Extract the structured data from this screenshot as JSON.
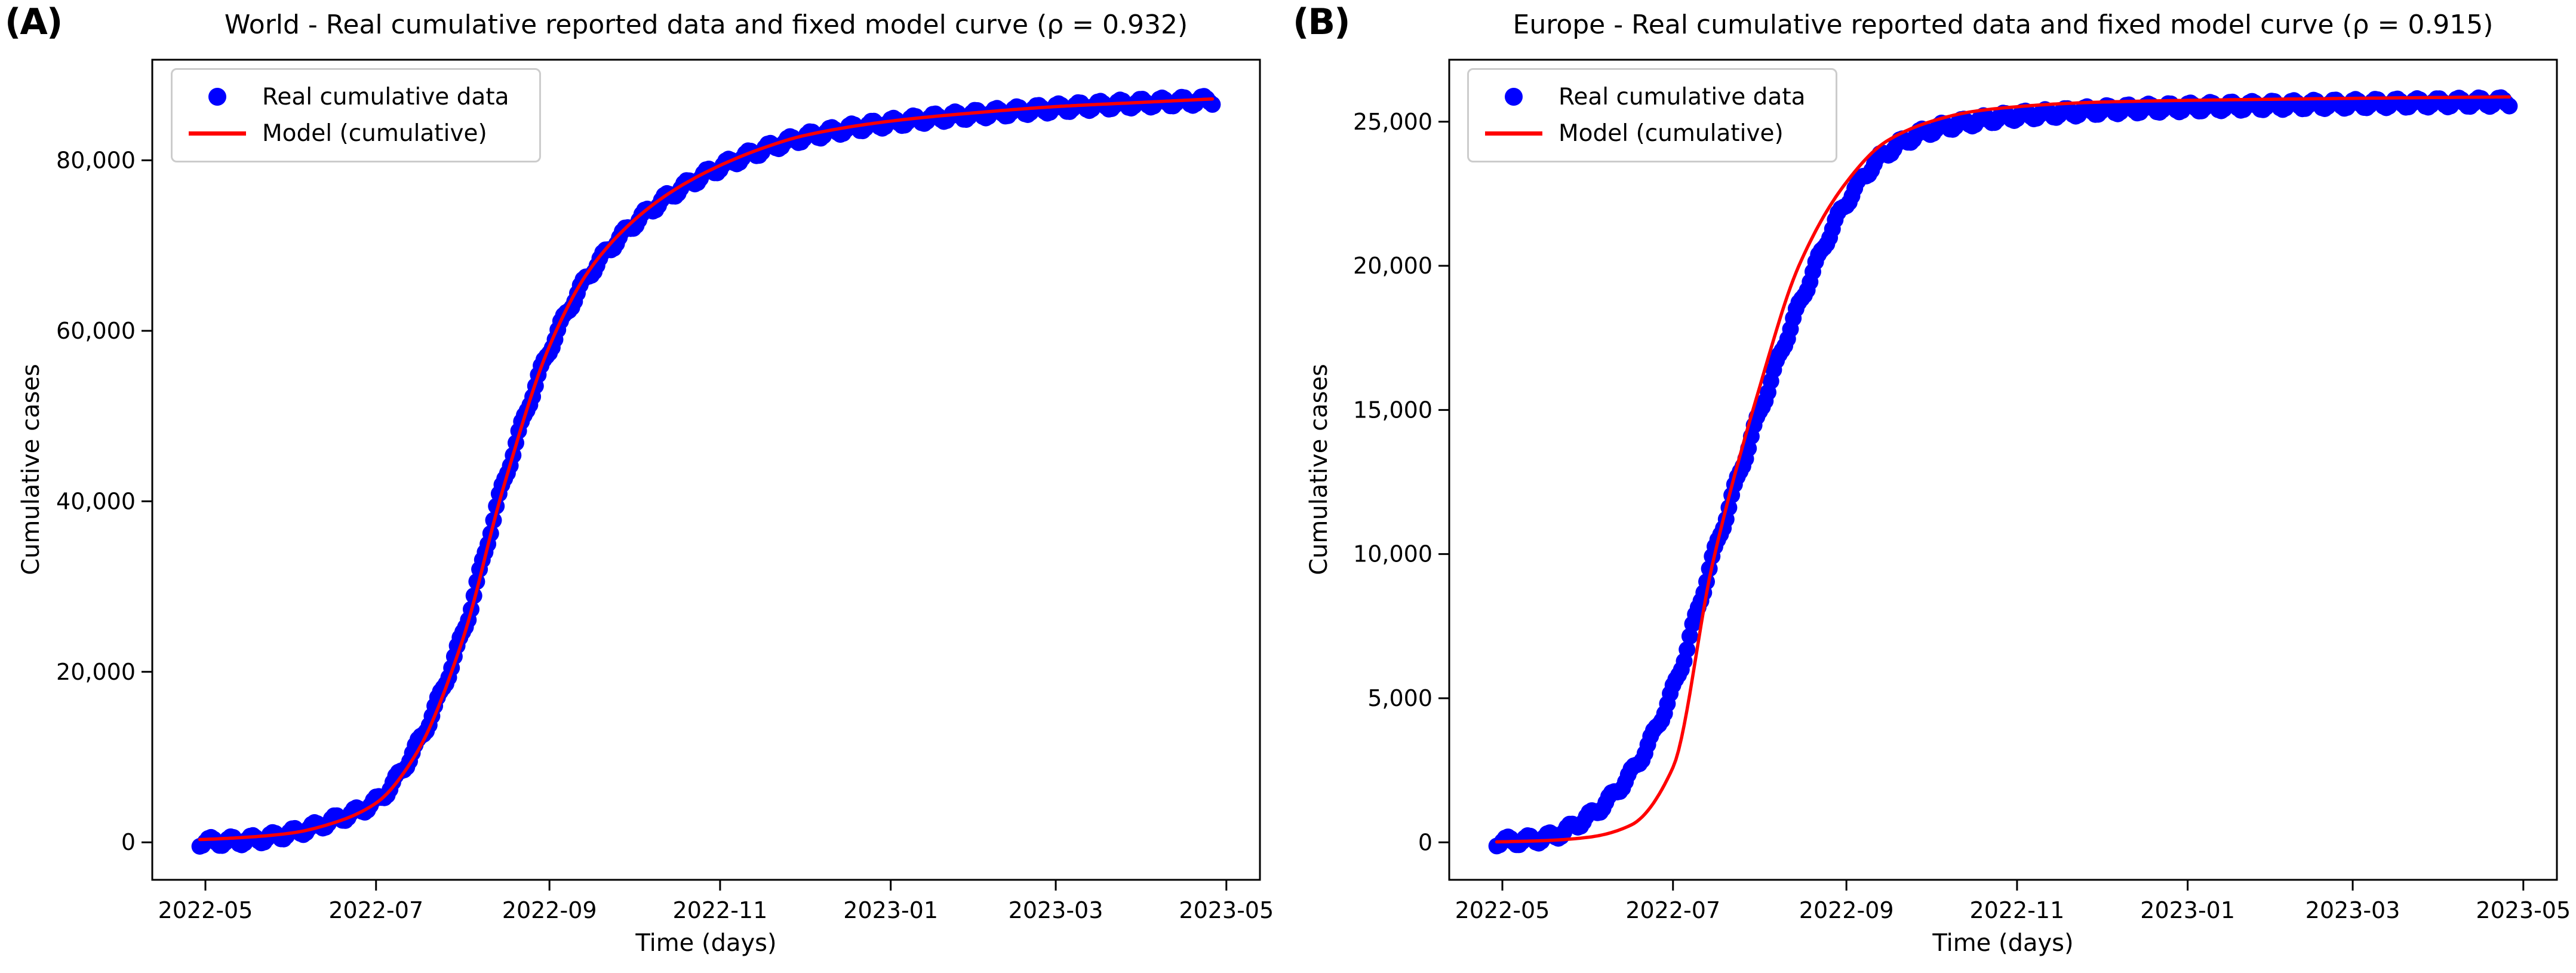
{
  "figure": {
    "background": "#ffffff",
    "text_color": "#000000",
    "spine_color": "#000000"
  },
  "chart_data": [
    {
      "type": "scatter",
      "panel_label": "(A)",
      "region": "World",
      "title": "World - Real cumulative reported data and fixed model curve (ρ = 0.932)",
      "rho": 0.932,
      "xlabel": "Time (days)",
      "ylabel": "Cumulative cases",
      "x_start_date": "2022-05-01",
      "x_tick_labels": [
        "2022-05",
        "2022-07",
        "2022-09",
        "2022-11",
        "2023-01",
        "2023-03",
        "2023-05"
      ],
      "x_tick_days": [
        0,
        61,
        123,
        184,
        245,
        304,
        365
      ],
      "y_tick_labels": [
        "0",
        "20,000",
        "40,000",
        "60,000",
        "80,000"
      ],
      "y_ticks": [
        0,
        20000,
        40000,
        60000,
        80000
      ],
      "xlim_days": [
        -19,
        377
      ],
      "ylim": [
        -4400,
        91800
      ],
      "grid": false,
      "legend_position": "upper-left",
      "legend": [
        {
          "label": "Real cumulative data",
          "marker": "dot",
          "color": "#0000ff"
        },
        {
          "label": "Model (cumulative)",
          "marker": "line",
          "color": "#ff0000"
        }
      ],
      "series": [
        {
          "name": "Real cumulative data",
          "type": "scatter",
          "color": "#0000ff",
          "sample_days": [
            -2,
            0,
            15,
            31,
            46,
            61,
            75,
            92,
            106,
            123,
            137,
            153,
            168,
            184,
            199,
            214,
            245,
            276,
            304,
            335,
            360
          ],
          "values": [
            40,
            50,
            250,
            1100,
            2600,
            4800,
            11000,
            24500,
            41500,
            57800,
            66500,
            72500,
            76300,
            79200,
            81200,
            82700,
            84400,
            85400,
            86100,
            86700,
            87050
          ]
        },
        {
          "name": "Model (cumulative)",
          "type": "line",
          "color": "#ff0000",
          "sample_days": [
            -2,
            0,
            15,
            31,
            46,
            61,
            75,
            92,
            106,
            123,
            137,
            153,
            168,
            184,
            199,
            214,
            245,
            276,
            304,
            335,
            360
          ],
          "values": [
            330,
            350,
            600,
            1100,
            2300,
            4600,
            10200,
            23800,
            41000,
            58200,
            67000,
            72900,
            76600,
            79400,
            81400,
            82900,
            84600,
            85600,
            86300,
            86800,
            87200
          ]
        }
      ]
    },
    {
      "type": "scatter",
      "panel_label": "(B)",
      "region": "Europe",
      "title": "Europe - Real cumulative reported data and fixed model curve (ρ = 0.915)",
      "rho": 0.915,
      "xlabel": "Time (days)",
      "ylabel": "Cumulative cases",
      "x_start_date": "2022-05-01",
      "x_tick_labels": [
        "2022-05",
        "2022-07",
        "2022-09",
        "2022-11",
        "2023-01",
        "2023-03",
        "2023-05"
      ],
      "x_tick_days": [
        0,
        61,
        123,
        184,
        245,
        304,
        365
      ],
      "y_tick_labels": [
        "0",
        "5,000",
        "10,000",
        "15,000",
        "20,000",
        "25,000"
      ],
      "y_ticks": [
        0,
        5000,
        10000,
        15000,
        20000,
        25000
      ],
      "xlim_days": [
        -19,
        377
      ],
      "ylim": [
        -1300,
        27150
      ],
      "grid": false,
      "legend_position": "upper-left",
      "legend": [
        {
          "label": "Real cumulative data",
          "marker": "dot",
          "color": "#0000ff"
        },
        {
          "label": "Model (cumulative)",
          "marker": "line",
          "color": "#ff0000"
        }
      ],
      "series": [
        {
          "name": "Real cumulative data",
          "type": "scatter",
          "color": "#0000ff",
          "sample_days": [
            -2,
            0,
            15,
            31,
            46,
            61,
            75,
            92,
            106,
            123,
            137,
            153,
            168,
            184,
            199,
            214,
            245,
            276,
            304,
            335,
            360
          ],
          "values": [
            25,
            30,
            150,
            900,
            2400,
            5300,
            9800,
            14900,
            18600,
            22200,
            23900,
            24700,
            25000,
            25200,
            25300,
            25400,
            25500,
            25570,
            25620,
            25660,
            25690
          ]
        },
        {
          "name": "Model (cumulative)",
          "type": "line",
          "color": "#ff0000",
          "sample_days": [
            -2,
            0,
            15,
            31,
            46,
            61,
            75,
            92,
            106,
            123,
            137,
            153,
            168,
            184,
            199,
            214,
            245,
            276,
            304,
            335,
            360
          ],
          "values": [
            15,
            20,
            60,
            180,
            600,
            2600,
            9600,
            15800,
            20000,
            22900,
            24300,
            25000,
            25350,
            25520,
            25620,
            25680,
            25740,
            25780,
            25810,
            25840,
            25860
          ]
        }
      ]
    }
  ]
}
